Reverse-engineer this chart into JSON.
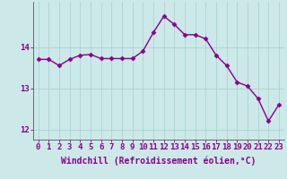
{
  "x": [
    0,
    1,
    2,
    3,
    4,
    5,
    6,
    7,
    8,
    9,
    10,
    11,
    12,
    13,
    14,
    15,
    16,
    17,
    18,
    19,
    20,
    21,
    22,
    23
  ],
  "y": [
    13.7,
    13.7,
    13.55,
    13.7,
    13.8,
    13.82,
    13.72,
    13.72,
    13.72,
    13.72,
    13.9,
    14.35,
    14.75,
    14.55,
    14.3,
    14.3,
    14.2,
    13.8,
    13.55,
    13.15,
    13.05,
    12.75,
    12.2,
    12.6
  ],
  "line_color": "#880088",
  "marker": "D",
  "marker_color": "#880088",
  "bg_color": "#cce8e8",
  "grid_color": "#aad4d4",
  "axis_color": "#555555",
  "tick_color": "#880088",
  "xlabel": "Windchill (Refroidissement éolien,°C)",
  "ylabel": "",
  "xlim": [
    -0.5,
    23.5
  ],
  "ylim": [
    11.75,
    15.1
  ],
  "yticks": [
    12,
    13,
    14
  ],
  "xticks": [
    0,
    1,
    2,
    3,
    4,
    5,
    6,
    7,
    8,
    9,
    10,
    11,
    12,
    13,
    14,
    15,
    16,
    17,
    18,
    19,
    20,
    21,
    22,
    23
  ],
  "font_size": 6.5,
  "xlabel_font_size": 7,
  "marker_size": 2.5,
  "linewidth": 1.0
}
